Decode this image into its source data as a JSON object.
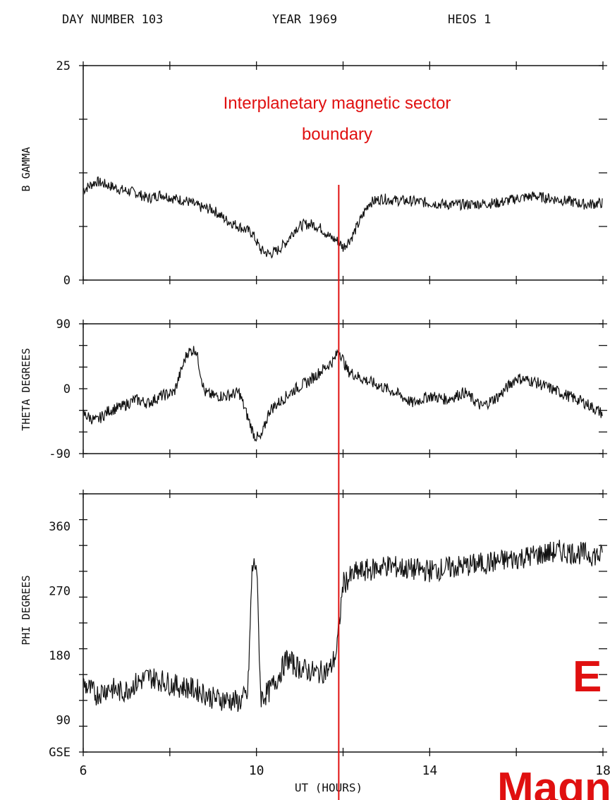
{
  "header": {
    "day_label": "DAY NUMBER 103",
    "year_label": "YEAR 1969",
    "mission_label": "HEOS 1"
  },
  "annotation": {
    "line1": "Interplanetary magnetic sector",
    "line2": "boundary",
    "x_hours": 11.9,
    "color": "#e01010"
  },
  "overlay_text": {
    "fragment_1": "E",
    "fragment_2": "Magn",
    "color": "#e01010"
  },
  "colors": {
    "trace": "#111111",
    "axis": "#111111",
    "annotation": "#e01010"
  },
  "chart_data": [
    {
      "type": "line",
      "ylabel": "B GAMMA",
      "xlim": [
        6,
        18
      ],
      "ylim": [
        0,
        25
      ],
      "y_tick_labels": [
        "25",
        "0"
      ],
      "x": [
        6,
        6.3,
        6.6,
        6.9,
        7.2,
        7.5,
        7.8,
        8.1,
        8.4,
        8.7,
        9.0,
        9.3,
        9.5,
        9.7,
        9.9,
        10.1,
        10.3,
        10.5,
        10.7,
        10.9,
        11.1,
        11.3,
        11.5,
        11.7,
        11.9,
        12.0,
        12.2,
        12.4,
        12.6,
        12.9,
        13.2,
        13.6,
        14.0,
        14.4,
        14.8,
        15.2,
        15.6,
        16.0,
        16.4,
        16.8,
        17.2,
        17.6,
        18.0
      ],
      "y": [
        10.5,
        11.5,
        11,
        10.5,
        10.2,
        9.5,
        10,
        9.5,
        9.2,
        8.5,
        8.2,
        7,
        6.5,
        6,
        5.5,
        3.5,
        3,
        3.5,
        4.5,
        6,
        6.5,
        6.5,
        6,
        5,
        4.5,
        3.8,
        5,
        7,
        9,
        9.5,
        9.3,
        9.2,
        9,
        8.8,
        8.8,
        8.9,
        9,
        9.5,
        9.8,
        9.5,
        9.2,
        8.8,
        9
      ]
    },
    {
      "type": "line",
      "ylabel": "THETA DEGREES",
      "xlim": [
        6,
        18
      ],
      "ylim": [
        -90,
        90
      ],
      "y_tick_labels": [
        "90",
        "0",
        "-90"
      ],
      "x": [
        6,
        6.3,
        6.6,
        6.9,
        7.2,
        7.5,
        7.8,
        8.1,
        8.4,
        8.6,
        8.8,
        9.0,
        9.3,
        9.6,
        9.8,
        9.95,
        10.1,
        10.3,
        10.6,
        10.9,
        11.2,
        11.5,
        11.8,
        11.9,
        12.1,
        12.4,
        12.8,
        13.2,
        13.6,
        14.0,
        14.4,
        14.8,
        15.2,
        15.6,
        16.0,
        16.4,
        16.8,
        17.2,
        17.6,
        18.0
      ],
      "y": [
        -35,
        -45,
        -30,
        -25,
        -15,
        -20,
        -10,
        -5,
        50,
        55,
        -5,
        -10,
        -10,
        -5,
        -40,
        -65,
        -70,
        -30,
        -15,
        0,
        10,
        25,
        40,
        55,
        25,
        15,
        5,
        -5,
        -20,
        -10,
        -15,
        -5,
        -25,
        -10,
        15,
        10,
        0,
        -10,
        -20,
        -35
      ]
    },
    {
      "type": "line",
      "ylabel": "PHI DEGREES",
      "xlim": [
        6,
        18
      ],
      "ylim": [
        45,
        405
      ],
      "y_tick_labels": [
        "360",
        "270",
        "180",
        "90",
        "GSE"
      ],
      "x": [
        6,
        6.3,
        6.6,
        6.9,
        7.2,
        7.5,
        7.8,
        8.1,
        8.4,
        8.7,
        9.0,
        9.3,
        9.6,
        9.8,
        9.9,
        10.0,
        10.1,
        10.3,
        10.5,
        10.7,
        10.9,
        11.1,
        11.4,
        11.7,
        11.85,
        12.0,
        12.3,
        12.7,
        13.0,
        13.5,
        14.0,
        14.5,
        15.0,
        15.5,
        16.0,
        16.5,
        17.0,
        17.5,
        18.0
      ],
      "y": [
        140,
        125,
        135,
        128,
        140,
        150,
        145,
        138,
        135,
        130,
        120,
        118,
        115,
        125,
        300,
        310,
        120,
        130,
        150,
        175,
        165,
        160,
        155,
        160,
        185,
        280,
        295,
        300,
        305,
        300,
        298,
        302,
        306,
        310,
        315,
        320,
        325,
        322,
        318
      ]
    }
  ],
  "x_axis": {
    "label": "UT (HOURS)",
    "tick_labels": [
      "6",
      "10",
      "14",
      "18"
    ],
    "ticks": [
      6,
      10,
      14,
      18
    ]
  }
}
